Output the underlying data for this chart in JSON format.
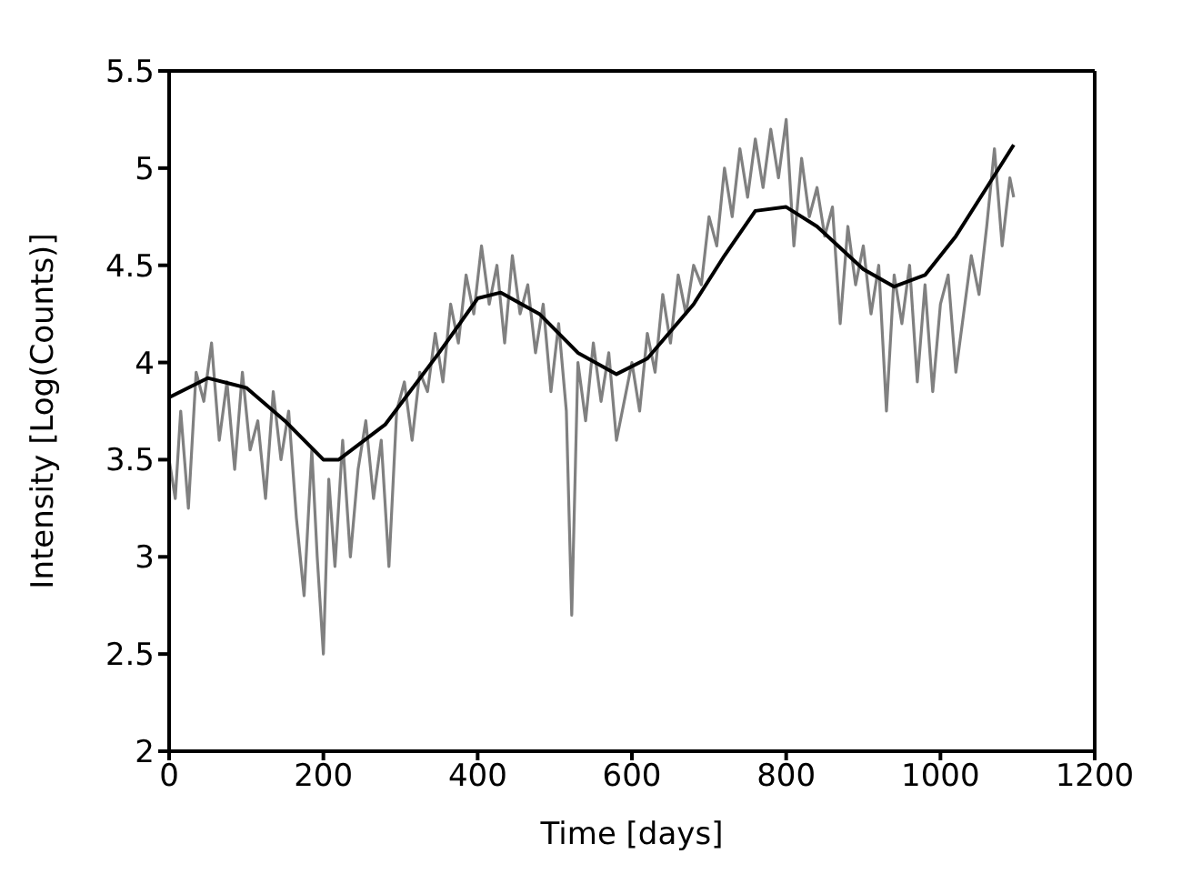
{
  "chart_data": {
    "type": "line",
    "xlabel": "Time [days]",
    "ylabel": "Intensity [Log(Counts)]",
    "xlim": [
      0,
      1200
    ],
    "ylim": [
      2,
      5.5
    ],
    "xticks": [
      0,
      200,
      400,
      600,
      800,
      1000,
      1200
    ],
    "yticks": [
      2,
      2.5,
      3,
      3.5,
      4,
      4.5,
      5,
      5.5
    ],
    "grid": false,
    "legend": false,
    "marker": "none",
    "line_style": "solid",
    "series": [
      {
        "color": "#808080",
        "x": [
          0,
          8,
          15,
          25,
          35,
          45,
          55,
          65,
          75,
          85,
          95,
          105,
          115,
          125,
          135,
          145,
          155,
          165,
          175,
          185,
          192,
          200,
          207,
          215,
          225,
          235,
          245,
          255,
          265,
          275,
          285,
          295,
          305,
          315,
          325,
          335,
          345,
          355,
          365,
          375,
          385,
          395,
          405,
          415,
          425,
          435,
          445,
          455,
          465,
          475,
          485,
          495,
          505,
          515,
          522,
          530,
          540,
          550,
          560,
          570,
          580,
          590,
          600,
          610,
          620,
          630,
          640,
          650,
          660,
          670,
          680,
          690,
          700,
          710,
          720,
          730,
          740,
          750,
          760,
          770,
          780,
          790,
          800,
          810,
          820,
          830,
          840,
          850,
          860,
          870,
          880,
          890,
          900,
          910,
          920,
          930,
          940,
          950,
          960,
          970,
          980,
          990,
          1000,
          1010,
          1020,
          1030,
          1040,
          1050,
          1060,
          1070,
          1080,
          1090,
          1095
        ],
        "values": [
          3.5,
          3.3,
          3.75,
          3.25,
          3.95,
          3.8,
          4.1,
          3.6,
          3.9,
          3.45,
          3.95,
          3.55,
          3.7,
          3.3,
          3.85,
          3.5,
          3.75,
          3.2,
          2.8,
          3.55,
          3.0,
          2.5,
          3.4,
          2.95,
          3.6,
          3.0,
          3.45,
          3.7,
          3.3,
          3.6,
          2.95,
          3.75,
          3.9,
          3.6,
          3.95,
          3.85,
          4.15,
          3.9,
          4.3,
          4.1,
          4.45,
          4.25,
          4.6,
          4.3,
          4.5,
          4.1,
          4.55,
          4.25,
          4.4,
          4.05,
          4.3,
          3.85,
          4.2,
          3.75,
          2.7,
          4.0,
          3.7,
          4.1,
          3.8,
          4.05,
          3.6,
          3.8,
          4.0,
          3.75,
          4.15,
          3.95,
          4.35,
          4.1,
          4.45,
          4.25,
          4.5,
          4.4,
          4.75,
          4.6,
          5.0,
          4.75,
          5.1,
          4.85,
          5.15,
          4.9,
          5.2,
          4.95,
          5.25,
          4.6,
          5.05,
          4.75,
          4.9,
          4.65,
          4.8,
          4.2,
          4.7,
          4.4,
          4.6,
          4.25,
          4.5,
          3.75,
          4.45,
          4.2,
          4.5,
          3.9,
          4.4,
          3.85,
          4.3,
          4.45,
          3.95,
          4.25,
          4.55,
          4.35,
          4.7,
          5.1,
          4.6,
          4.95,
          4.85
        ]
      },
      {
        "color": "#000000",
        "x": [
          0,
          50,
          100,
          150,
          200,
          220,
          280,
          350,
          400,
          430,
          480,
          530,
          580,
          620,
          680,
          720,
          760,
          800,
          840,
          900,
          940,
          980,
          1020,
          1060,
          1095
        ],
        "values": [
          3.82,
          3.92,
          3.87,
          3.7,
          3.5,
          3.5,
          3.68,
          4.05,
          4.33,
          4.36,
          4.25,
          4.05,
          3.94,
          4.02,
          4.3,
          4.55,
          4.78,
          4.8,
          4.7,
          4.48,
          4.39,
          4.45,
          4.65,
          4.9,
          5.12
        ]
      }
    ]
  }
}
